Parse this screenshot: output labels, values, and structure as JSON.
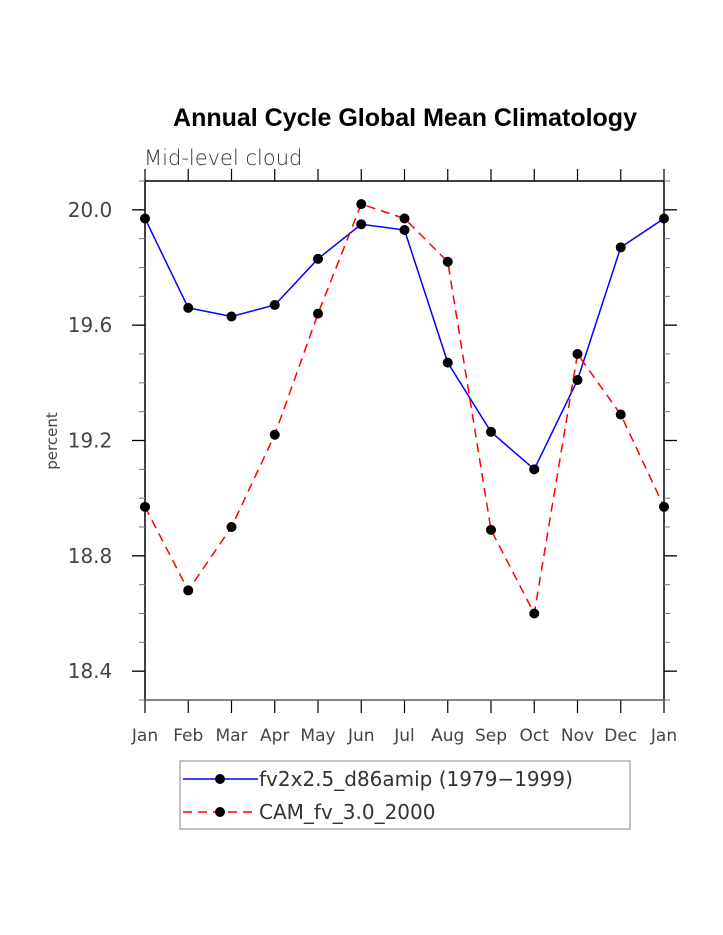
{
  "chart_data": {
    "type": "line",
    "title": "Annual Cycle Global Mean Climatology",
    "subtitle": "Mid-level cloud",
    "xlabel": "",
    "ylabel": "percent",
    "categories": [
      "Jan",
      "Feb",
      "Mar",
      "Apr",
      "May",
      "Jun",
      "Jul",
      "Aug",
      "Sep",
      "Oct",
      "Nov",
      "Dec",
      "Jan"
    ],
    "ylim": [
      18.3,
      20.1
    ],
    "yticks": [
      18.4,
      18.8,
      19.2,
      19.6,
      20.0
    ],
    "ytick_labels": [
      "18.4",
      "18.8",
      "19.2",
      "19.6",
      "20.0"
    ],
    "yminor_step": 0.1,
    "grid": false,
    "legend_position": "bottom",
    "series": [
      {
        "name": "fv2x2.5_d86amip (1979-1999)",
        "legend_label": "fv2x2.5_d86amip (1979−1999)",
        "color": "#0000ff",
        "line_style": "solid",
        "marker": "filled-circle",
        "values": [
          19.97,
          19.66,
          19.63,
          19.67,
          19.83,
          19.95,
          19.93,
          19.47,
          19.23,
          19.1,
          19.41,
          19.87,
          19.97
        ]
      },
      {
        "name": "CAM_fv_3.0_2000",
        "legend_label": "CAM_fv_3.0_2000",
        "color": "#ff0000",
        "line_style": "dashed",
        "marker": "filled-circle",
        "values": [
          18.97,
          18.68,
          18.9,
          19.22,
          19.64,
          20.02,
          19.97,
          19.82,
          18.89,
          18.6,
          19.5,
          19.29,
          18.97
        ]
      }
    ]
  }
}
